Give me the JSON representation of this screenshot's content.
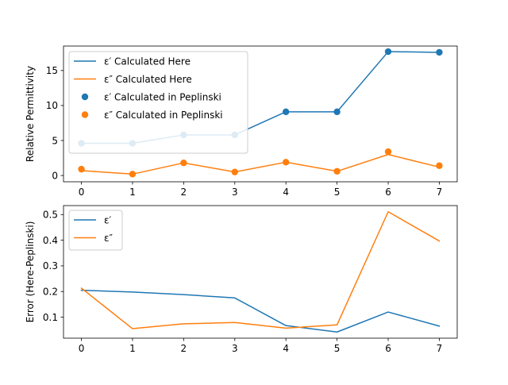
{
  "chart_data": [
    {
      "type": "line",
      "title": "",
      "xlabel": "",
      "ylabel": "Relative Permittivity",
      "x": [
        0,
        1,
        2,
        3,
        4,
        5,
        6,
        7
      ],
      "xlim": [
        -0.35,
        7.35
      ],
      "ylim": [
        -0.9,
        18.5
      ],
      "xticks": [
        "0",
        "1",
        "2",
        "3",
        "4",
        "5",
        "6",
        "7"
      ],
      "yticks": [
        0,
        5,
        10,
        15
      ],
      "grid": false,
      "legend_position": "upper-left",
      "series": [
        {
          "name": "ε′ Calculated Here",
          "kind": "line",
          "color": "#1f77b4",
          "values": [
            4.6,
            4.6,
            5.8,
            5.8,
            9.1,
            9.1,
            17.7,
            17.6
          ]
        },
        {
          "name": "ε″ Calculated Here",
          "kind": "line",
          "color": "#ff7f0e",
          "values": [
            0.7,
            0.2,
            1.8,
            0.5,
            1.9,
            0.6,
            3.0,
            1.2
          ]
        },
        {
          "name": "ε′ Calculated in Peplinski",
          "kind": "scatter",
          "color": "#1f77b4",
          "values": [
            4.6,
            4.6,
            5.8,
            5.8,
            9.1,
            9.1,
            17.7,
            17.6
          ]
        },
        {
          "name": "ε″ Calculated in Peplinski",
          "kind": "scatter",
          "color": "#ff7f0e",
          "values": [
            0.9,
            0.2,
            1.8,
            0.5,
            1.9,
            0.6,
            3.4,
            1.4
          ]
        }
      ]
    },
    {
      "type": "line",
      "title": "",
      "xlabel": "",
      "ylabel": "Error (Here-Peplinski)",
      "x": [
        0,
        1,
        2,
        3,
        4,
        5,
        6,
        7
      ],
      "xlim": [
        -0.35,
        7.35
      ],
      "ylim": [
        0.018,
        0.535
      ],
      "xticks": [
        "0",
        "1",
        "2",
        "3",
        "4",
        "5",
        "6",
        "7"
      ],
      "yticks": [
        0.1,
        0.2,
        0.3,
        0.4,
        0.5
      ],
      "ytick_labels": [
        "0.1",
        "0.2",
        "0.3",
        "0.4",
        "0.5"
      ],
      "grid": false,
      "legend_position": "upper-left",
      "series": [
        {
          "name": "ε′",
          "kind": "line",
          "color": "#1f77b4",
          "values": [
            0.205,
            0.198,
            0.188,
            0.175,
            0.067,
            0.042,
            0.12,
            0.065
          ]
        },
        {
          "name": "ε″",
          "kind": "line",
          "color": "#ff7f0e",
          "values": [
            0.213,
            0.055,
            0.074,
            0.079,
            0.057,
            0.07,
            0.511,
            0.397
          ]
        }
      ]
    }
  ]
}
